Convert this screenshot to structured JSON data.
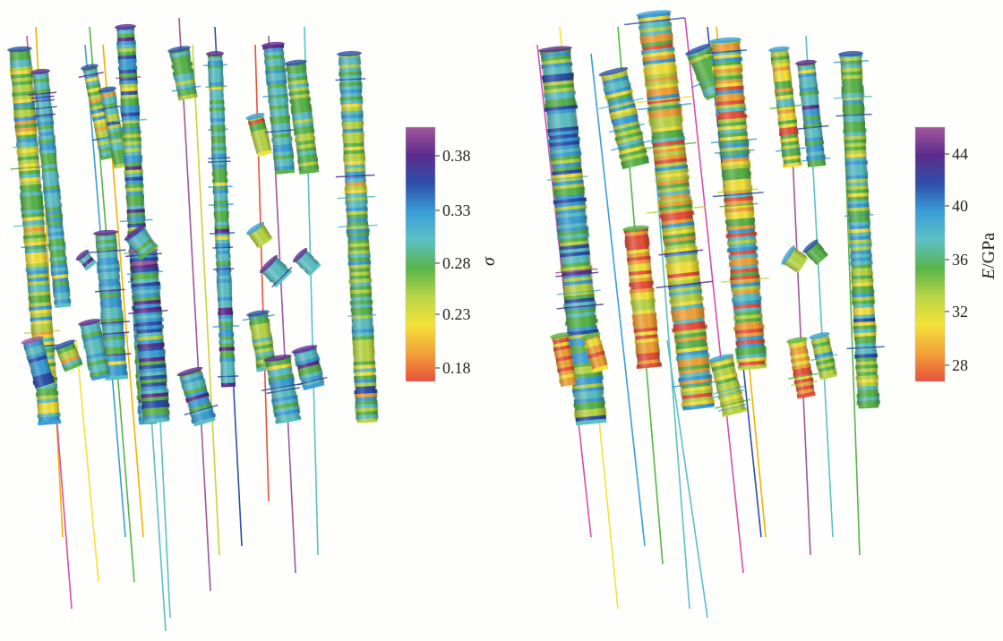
{
  "figure": {
    "panels": [
      {
        "id": "poisson-ratio",
        "colorbar": {
          "variable_symbol": "σ",
          "unit": "",
          "ticks": [
            "0.38",
            "0.33",
            "0.28",
            "0.23",
            "0.18"
          ],
          "colormap": [
            "#e8503a",
            "#f2a238",
            "#f4e23a",
            "#b9d645",
            "#58b44a",
            "#5cc0c4",
            "#3b9ed6",
            "#2c4fa8",
            "#5c2c8c",
            "#a1579c"
          ]
        }
      },
      {
        "id": "elastic-modulus",
        "colorbar": {
          "variable_symbol": "E",
          "unit": "GPa",
          "ticks": [
            "44",
            "40",
            "36",
            "32",
            "28"
          ],
          "colormap": [
            "#e8503a",
            "#f2a238",
            "#f4e23a",
            "#b9d645",
            "#58b44a",
            "#5cc0c4",
            "#3b9ed6",
            "#2c4fa8",
            "#5c2c8c",
            "#a1579c"
          ]
        }
      }
    ]
  }
}
